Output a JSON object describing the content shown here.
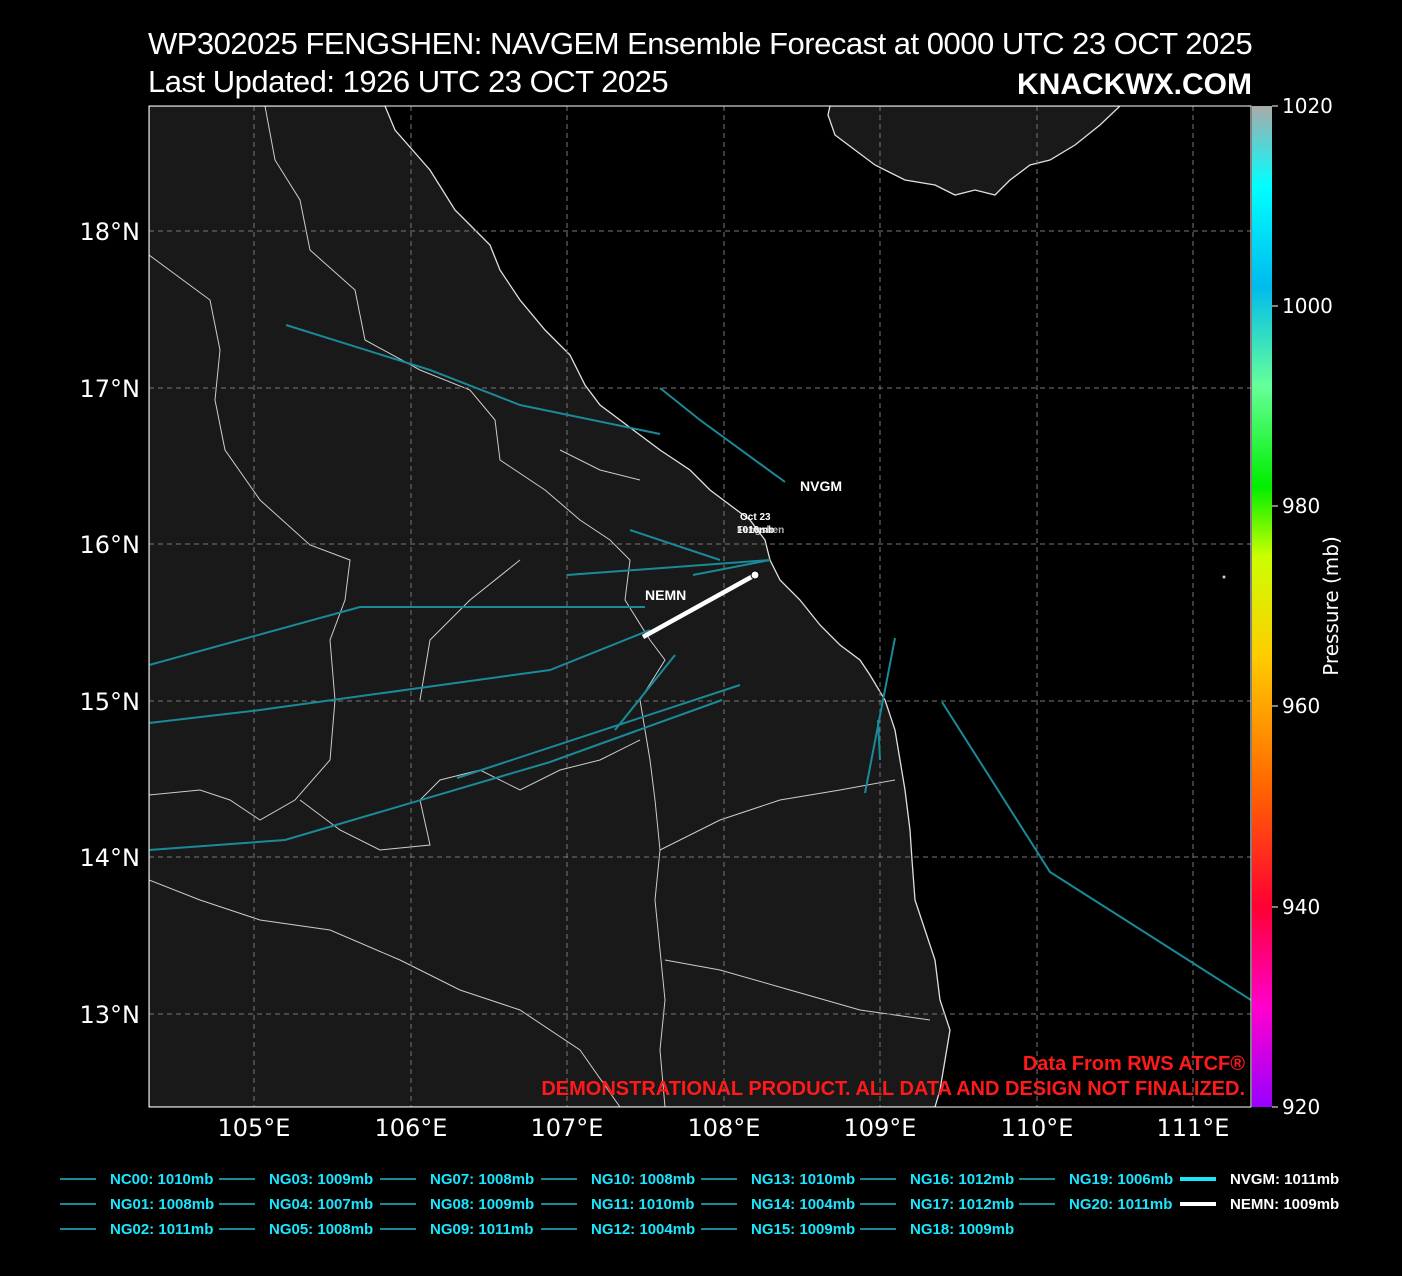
{
  "title": {
    "line1": "WP302025 FENGSHEN: NAVGEM Ensemble Forecast at 0000 UTC 23 OCT 2025",
    "line2": "Last Updated: 1926 UTC 23 OCT 2025",
    "brand": "KNACKWX.COM"
  },
  "axes": {
    "lat_labels": [
      "18°N",
      "17°N",
      "16°N",
      "15°N",
      "14°N",
      "13°N"
    ],
    "lon_labels": [
      "105°E",
      "106°E",
      "107°E",
      "108°E",
      "109°E",
      "110°E",
      "111°E"
    ]
  },
  "colorbar": {
    "label": "Pressure (mb)",
    "ticks": [
      "1020",
      "1000",
      "980",
      "960",
      "940",
      "920"
    ]
  },
  "disclaimer": {
    "line1": "Data From RWS ATCF®",
    "line2": "DEMONSTRATIONAL PRODUCT. ALL DATA AND DESIGN NOT FINALIZED."
  },
  "map_labels": {
    "nvgm": "NVGM",
    "nemn": "NEMN",
    "storm_date": "Oct 23",
    "storm_pressure": "1010mb",
    "storm_name": "Fengshen"
  },
  "colors": {
    "ensemble_track": "#1a8a99",
    "nvgm_track": "#19e6ff",
    "nemn_track": "#ffffff",
    "legend_text": "#19e6ff",
    "disclaimer": "#ff1a1a",
    "land": "#191919",
    "ocean": "#000000"
  },
  "legend": [
    {
      "label": "NC00: 1010mb"
    },
    {
      "label": "NG01: 1008mb"
    },
    {
      "label": "NG02: 1011mb"
    },
    {
      "label": "NG03: 1009mb"
    },
    {
      "label": "NG04: 1007mb"
    },
    {
      "label": "NG05: 1008mb"
    },
    {
      "label": "NG07: 1008mb"
    },
    {
      "label": "NG08: 1009mb"
    },
    {
      "label": "NG09: 1011mb"
    },
    {
      "label": "NG10: 1008mb"
    },
    {
      "label": "NG11: 1010mb"
    },
    {
      "label": "NG12: 1004mb"
    },
    {
      "label": "NG13: 1010mb"
    },
    {
      "label": "NG14: 1004mb"
    },
    {
      "label": "NG15: 1009mb"
    },
    {
      "label": "NG16: 1012mb"
    },
    {
      "label": "NG17: 1012mb"
    },
    {
      "label": "NG18: 1009mb"
    },
    {
      "label": "NG19: 1006mb"
    },
    {
      "label": "NG20: 1011mb"
    },
    {
      "label": "NVGM: 1011mb",
      "style": "nvgm"
    },
    {
      "label": "NEMN: 1009mb",
      "style": "nemn"
    }
  ]
}
